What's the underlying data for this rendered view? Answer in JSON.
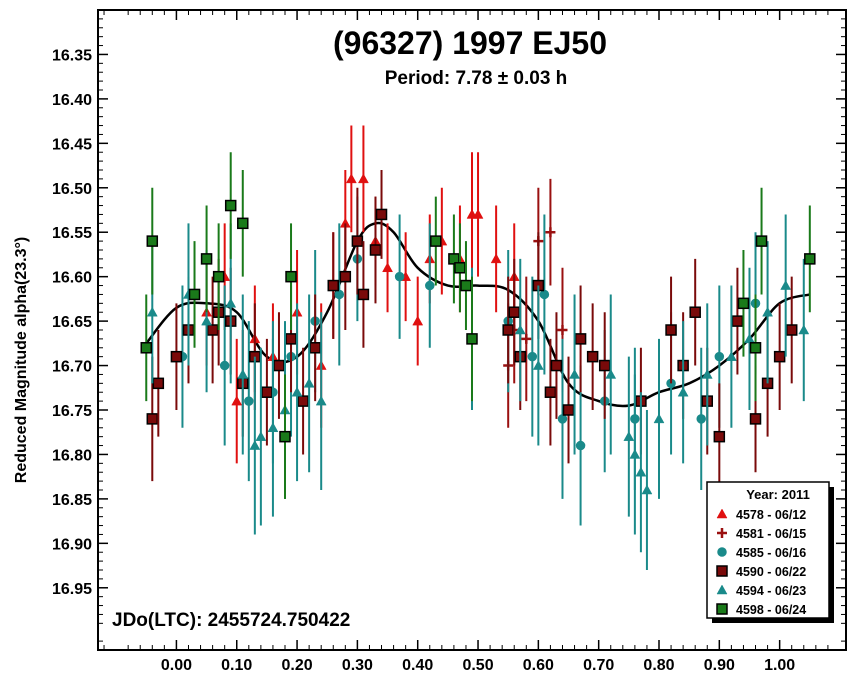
{
  "chart_data": {
    "type": "scatter",
    "title": "(96327) 1997 EJ50",
    "subtitle": "Period: 7.78 ± 0.03 h",
    "ylabel": "Reduced Magnitude alpha(23.3°)",
    "xlabel": "",
    "annotation": "JDo(LTC): 2455724.750422",
    "xlim": [
      -0.13,
      1.11
    ],
    "ylim": [
      16.3,
      17.02
    ],
    "y_inverted": true,
    "x_ticks": [
      "0.00",
      "0.10",
      "0.20",
      "0.30",
      "0.40",
      "0.50",
      "0.60",
      "0.70",
      "0.80",
      "0.90",
      "1.00"
    ],
    "y_ticks": [
      "16.35",
      "16.40",
      "16.45",
      "16.50",
      "16.55",
      "16.60",
      "16.65",
      "16.70",
      "16.75",
      "16.80",
      "16.85",
      "16.90",
      "16.95"
    ],
    "grid": false,
    "legend": {
      "position": "bottom-right",
      "title": "Year: 2011",
      "entries": [
        {
          "label": "4578 - 06/12",
          "marker": "triangle",
          "color": "#e01010"
        },
        {
          "label": "4581 - 06/15",
          "marker": "plus",
          "color": "#9a1010"
        },
        {
          "label": "4585 - 06/16",
          "marker": "circle",
          "color": "#1a8a8a"
        },
        {
          "label": "4590 - 06/22",
          "marker": "square",
          "color": "#7a0a0a"
        },
        {
          "label": "4594 - 06/23",
          "marker": "triangle",
          "color": "#1a8a8a"
        },
        {
          "label": "4598 - 06/24",
          "marker": "square",
          "color": "#1a7a1a"
        }
      ]
    },
    "fit_curve": {
      "x": [
        -0.05,
        0.0,
        0.05,
        0.1,
        0.15,
        0.2,
        0.25,
        0.3,
        0.33,
        0.36,
        0.4,
        0.45,
        0.5,
        0.55,
        0.6,
        0.65,
        0.7,
        0.75,
        0.8,
        0.85,
        0.9,
        0.95,
        1.0,
        1.05
      ],
      "y": [
        16.675,
        16.635,
        16.63,
        16.64,
        16.69,
        16.69,
        16.64,
        16.56,
        16.54,
        16.55,
        16.59,
        16.61,
        16.61,
        16.615,
        16.65,
        16.72,
        16.74,
        16.745,
        16.73,
        16.72,
        16.7,
        16.67,
        16.63,
        16.62
      ],
      "color": "#000000"
    },
    "series": [
      {
        "name": "4578 - 06/12",
        "marker": "triangle",
        "color": "#e01010",
        "x": [
          0.05,
          0.08,
          0.1,
          0.13,
          0.16,
          0.2,
          0.24,
          0.26,
          0.28,
          0.29,
          0.31,
          0.33,
          0.35,
          0.38,
          0.4,
          0.42,
          0.44,
          0.47,
          0.49,
          0.5,
          0.53,
          0.56
        ],
        "y": [
          16.64,
          16.6,
          16.74,
          16.67,
          16.69,
          16.64,
          16.7,
          16.61,
          16.54,
          16.49,
          16.49,
          16.56,
          16.59,
          16.6,
          16.65,
          16.58,
          16.56,
          16.58,
          16.53,
          16.53,
          16.58,
          16.6
        ],
        "err": [
          0.06,
          0.06,
          0.07,
          0.06,
          0.06,
          0.07,
          0.07,
          0.06,
          0.06,
          0.06,
          0.06,
          0.05,
          0.05,
          0.05,
          0.05,
          0.05,
          0.06,
          0.06,
          0.07,
          0.07,
          0.06,
          0.06
        ]
      },
      {
        "name": "4581 - 06/15",
        "marker": "plus",
        "color": "#9a1010",
        "x": [
          0.55,
          0.56,
          0.58,
          0.6,
          0.62,
          0.64
        ],
        "y": [
          16.7,
          16.66,
          16.67,
          16.56,
          16.55,
          16.66
        ],
        "err": [
          0.07,
          0.06,
          0.07,
          0.06,
          0.06,
          0.07
        ]
      },
      {
        "name": "4585 - 06/16",
        "marker": "circle",
        "color": "#1a8a8a",
        "x": [
          0.01,
          0.08,
          0.12,
          0.16,
          0.19,
          0.23,
          0.27,
          0.3,
          0.37,
          0.42,
          0.49,
          0.55,
          0.59,
          0.61,
          0.64,
          0.67,
          0.71,
          0.76,
          0.82,
          0.87,
          0.9,
          0.96
        ],
        "y": [
          16.69,
          16.7,
          16.74,
          16.73,
          16.69,
          16.65,
          16.62,
          16.58,
          16.6,
          16.61,
          16.67,
          16.65,
          16.69,
          16.62,
          16.76,
          16.79,
          16.74,
          16.76,
          16.72,
          16.76,
          16.69,
          16.63
        ],
        "err": [
          0.08,
          0.09,
          0.09,
          0.08,
          0.09,
          0.08,
          0.08,
          0.07,
          0.07,
          0.07,
          0.08,
          0.08,
          0.09,
          0.09,
          0.09,
          0.09,
          0.08,
          0.08,
          0.08,
          0.08,
          0.08,
          0.08
        ]
      },
      {
        "name": "4590 - 06/22",
        "marker": "square",
        "color": "#7a0a0a",
        "x": [
          -0.04,
          -0.03,
          0.0,
          0.02,
          0.06,
          0.07,
          0.09,
          0.11,
          0.13,
          0.15,
          0.17,
          0.19,
          0.21,
          0.23,
          0.26,
          0.28,
          0.3,
          0.31,
          0.33,
          0.34,
          0.55,
          0.56,
          0.57,
          0.6,
          0.62,
          0.63,
          0.65,
          0.67,
          0.69,
          0.71,
          0.77,
          0.82,
          0.84,
          0.86,
          0.88,
          0.9,
          0.93,
          0.96,
          0.98,
          1.0,
          1.02
        ],
        "y": [
          16.76,
          16.72,
          16.69,
          16.66,
          16.66,
          16.64,
          16.65,
          16.72,
          16.69,
          16.73,
          16.7,
          16.67,
          16.74,
          16.68,
          16.61,
          16.6,
          16.56,
          16.62,
          16.57,
          16.53,
          16.66,
          16.64,
          16.69,
          16.61,
          16.73,
          16.7,
          16.75,
          16.67,
          16.69,
          16.7,
          16.74,
          16.66,
          16.7,
          16.64,
          16.74,
          16.78,
          16.65,
          16.76,
          16.72,
          16.69,
          16.66
        ],
        "err": [
          0.07,
          0.06,
          0.06,
          0.06,
          0.06,
          0.06,
          0.06,
          0.06,
          0.06,
          0.06,
          0.06,
          0.06,
          0.06,
          0.06,
          0.06,
          0.06,
          0.06,
          0.06,
          0.06,
          0.05,
          0.06,
          0.06,
          0.06,
          0.06,
          0.06,
          0.06,
          0.06,
          0.06,
          0.06,
          0.06,
          0.06,
          0.06,
          0.06,
          0.06,
          0.06,
          0.06,
          0.06,
          0.06,
          0.06,
          0.06,
          0.06
        ]
      },
      {
        "name": "4594 - 06/23",
        "marker": "triangle",
        "color": "#1a8a8a",
        "x": [
          -0.04,
          0.02,
          0.05,
          0.09,
          0.11,
          0.13,
          0.14,
          0.16,
          0.18,
          0.2,
          0.22,
          0.24,
          0.57,
          0.6,
          0.66,
          0.72,
          0.75,
          0.76,
          0.77,
          0.78,
          0.8,
          0.84,
          0.88,
          0.92,
          0.95,
          0.98,
          1.01,
          1.04
        ],
        "y": [
          16.64,
          16.62,
          16.65,
          16.63,
          16.71,
          16.79,
          16.78,
          16.77,
          16.75,
          16.73,
          16.72,
          16.74,
          16.66,
          16.7,
          16.71,
          16.71,
          16.78,
          16.8,
          16.82,
          16.84,
          16.76,
          16.73,
          16.71,
          16.69,
          16.67,
          16.64,
          16.61,
          16.66
        ],
        "err": [
          0.08,
          0.08,
          0.08,
          0.09,
          0.09,
          0.1,
          0.1,
          0.1,
          0.1,
          0.1,
          0.1,
          0.1,
          0.08,
          0.09,
          0.09,
          0.09,
          0.09,
          0.09,
          0.09,
          0.09,
          0.09,
          0.08,
          0.08,
          0.08,
          0.08,
          0.08,
          0.08,
          0.08
        ]
      },
      {
        "name": "4598 - 06/24",
        "marker": "square",
        "color": "#1a7a1a",
        "x": [
          -0.05,
          -0.04,
          0.03,
          0.05,
          0.07,
          0.09,
          0.11,
          0.18,
          0.19,
          0.43,
          0.46,
          0.47,
          0.48,
          0.49,
          0.94,
          0.96,
          0.97,
          1.05
        ],
        "y": [
          16.68,
          16.56,
          16.62,
          16.58,
          16.6,
          16.52,
          16.54,
          16.78,
          16.6,
          16.56,
          16.58,
          16.59,
          16.61,
          16.67,
          16.63,
          16.68,
          16.56,
          16.58
        ],
        "err": [
          0.06,
          0.06,
          0.06,
          0.06,
          0.06,
          0.06,
          0.06,
          0.07,
          0.06,
          0.05,
          0.05,
          0.05,
          0.05,
          0.07,
          0.06,
          0.06,
          0.06,
          0.06
        ]
      }
    ]
  }
}
